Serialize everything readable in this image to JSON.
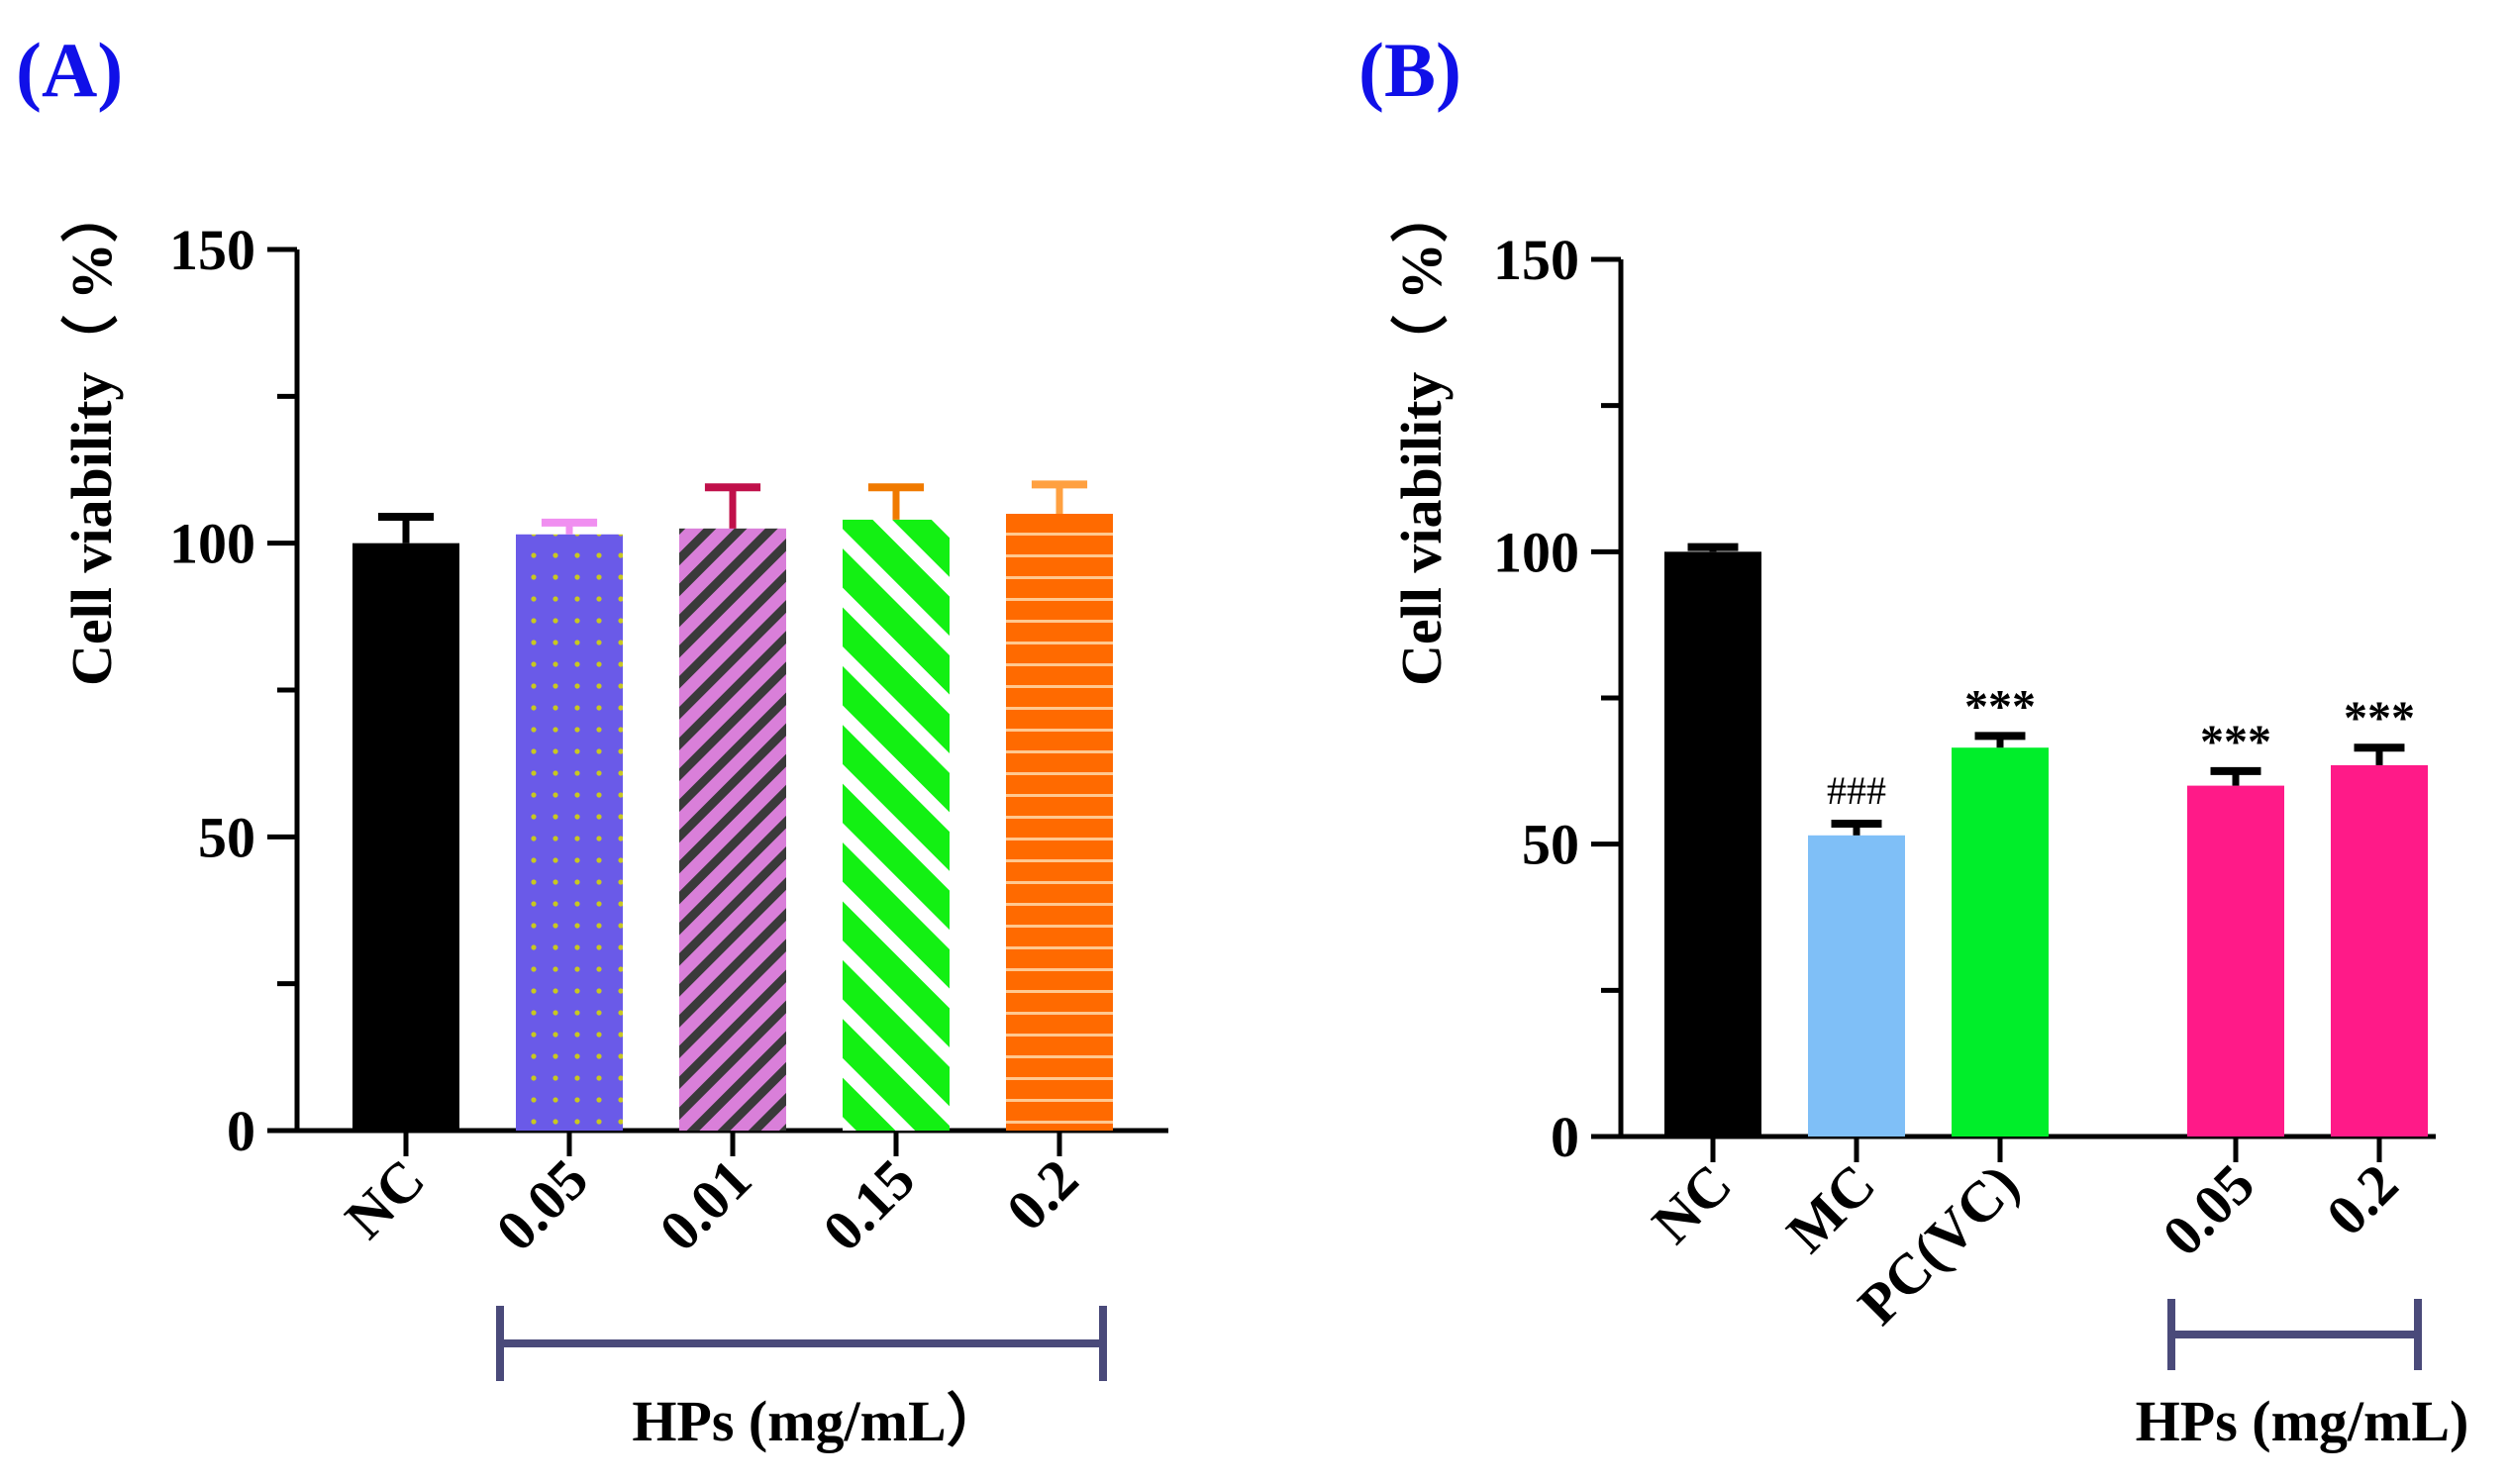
{
  "colors": {
    "black": "#000000",
    "blue_bracket": "#4a4a7a",
    "label_blue": "#1010e8"
  },
  "chart_data": [
    {
      "type": "bar",
      "panel_label": "(A)",
      "title": "",
      "ylabel": "Cell viability（ %）",
      "ylim": [
        0,
        150
      ],
      "yticks": [
        0,
        50,
        100,
        150
      ],
      "ytick_labels": [
        "0",
        "50",
        "100",
        "150"
      ],
      "categories": [
        "NC",
        "0.05",
        "0.01",
        "0.15",
        "0.2"
      ],
      "values": [
        100,
        101.5,
        102.5,
        104,
        105
      ],
      "errors": [
        4.5,
        2.0,
        7.0,
        5.5,
        5.0
      ],
      "bar_colors": [
        "#000000",
        "#6a5ae8",
        "#d97fd9",
        "#13f013",
        "#ff6a00"
      ],
      "error_colors": [
        "#000000",
        "#f08ff0",
        "#c0104a",
        "#f07a00",
        "#ffa040"
      ],
      "patterns": [
        "solid",
        "dots",
        "diag-stripes",
        "diag-wide",
        "horiz-lines"
      ],
      "annotations": [
        "",
        "",
        "",
        "",
        ""
      ],
      "group_bracket": {
        "label": "HPs (mg/mL）",
        "from": 1,
        "to": 4
      },
      "grid": false,
      "legend": "none"
    },
    {
      "type": "bar",
      "panel_label": "(B)",
      "title": "",
      "ylabel": "Cell viability（ %）",
      "ylim": [
        0,
        150
      ],
      "yticks": [
        0,
        50,
        100,
        150
      ],
      "ytick_labels": [
        "0",
        "50",
        "100",
        "150"
      ],
      "categories": [
        "NC",
        "MC",
        "PC(VC)",
        "0.05",
        "0.2"
      ],
      "values": [
        100,
        51.5,
        66.5,
        60,
        63.5
      ],
      "errors": [
        0.8,
        2.0,
        2.0,
        2.5,
        3.0
      ],
      "bar_colors": [
        "#000000",
        "#7fbff7",
        "#00ee2a",
        "#ff1a88",
        "#ff1a88"
      ],
      "error_colors": [
        "#000000",
        "#000000",
        "#000000",
        "#000000",
        "#000000"
      ],
      "patterns": [
        "solid",
        "solid",
        "solid",
        "solid",
        "solid"
      ],
      "annotations": [
        "",
        "###",
        "***",
        "***",
        "***"
      ],
      "group_bracket": {
        "label": "HPs (mg/mL)",
        "from": 3,
        "to": 4
      },
      "grid": false,
      "legend": "none"
    }
  ]
}
